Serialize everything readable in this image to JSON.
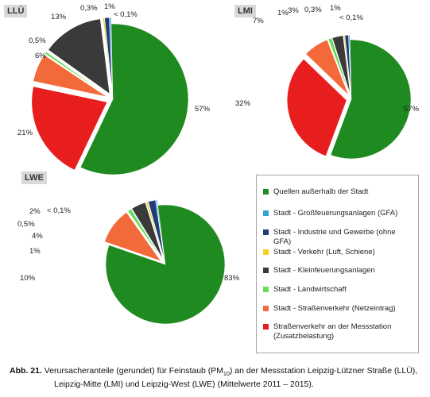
{
  "chart_data": [
    {
      "type": "pie",
      "title": "LLÜ",
      "slices": [
        {
          "label": "57%",
          "value": 57,
          "series": 0
        },
        {
          "label": "21%",
          "value": 21,
          "series": 7
        },
        {
          "label": "6%",
          "value": 6,
          "series": 6
        },
        {
          "label": "0,5%",
          "value": 0.5,
          "series": 5
        },
        {
          "label": "13%",
          "value": 13,
          "series": 4
        },
        {
          "label": "0,3%",
          "value": 0.3,
          "series": 3
        },
        {
          "label": "1%",
          "value": 1,
          "series": 2
        },
        {
          "label": "< 0,1%",
          "value": 0.1,
          "series": 1
        }
      ]
    },
    {
      "type": "pie",
      "title": "LMI",
      "slices": [
        {
          "label": "57%",
          "value": 57,
          "series": 0
        },
        {
          "label": "32%",
          "value": 32,
          "series": 7
        },
        {
          "label": "7%",
          "value": 7,
          "series": 6
        },
        {
          "label": "1%",
          "value": 1,
          "series": 5
        },
        {
          "label": "3%",
          "value": 3,
          "series": 4
        },
        {
          "label": "0,3%",
          "value": 0.3,
          "series": 3
        },
        {
          "label": "1%",
          "value": 1,
          "series": 2
        },
        {
          "label": "< 0,1%",
          "value": 0.1,
          "series": 1
        }
      ]
    },
    {
      "type": "pie",
      "title": "LWE",
      "slices": [
        {
          "label": "83%",
          "value": 83,
          "series": 0
        },
        {
          "label": "10%",
          "value": 10,
          "series": 6
        },
        {
          "label": "1%",
          "value": 1,
          "series": 5
        },
        {
          "label": "4%",
          "value": 4,
          "series": 4
        },
        {
          "label": "0,5%",
          "value": 0.5,
          "series": 3
        },
        {
          "label": "2%",
          "value": 2,
          "series": 2
        },
        {
          "label": "< 0,1%",
          "value": 0.1,
          "series": 1
        }
      ]
    }
  ],
  "legend": [
    {
      "label": "Quellen außerhalb der Stadt",
      "color": "#1f8a1f"
    },
    {
      "label": "Stadt - Großfeuerungsanlagen (GFA)",
      "color": "#3aa0d8"
    },
    {
      "label": "Stadt - Industrie und Gewerbe (ohne GFA)",
      "color": "#1f3f7a"
    },
    {
      "label": "Stadt - Verkehr (Luft, Schiene)",
      "color": "#f2d024"
    },
    {
      "label": "Stadt - Kleinfeuerungsanlagen",
      "color": "#3a3a3a"
    },
    {
      "label": "Stadt - Landwirtschaft",
      "color": "#66dd55"
    },
    {
      "label": "Stadt - Straßenverkehr (Netzeintrag)",
      "color": "#f26a3a"
    },
    {
      "label": "Straßenverkehr an der Messstation (Zusatzbelastung)",
      "color": "#e81e1e"
    }
  ],
  "caption": {
    "label": "Abb. 21.",
    "line1": "Verursacheranteile (gerundet) für Feinstaub (PM",
    "sub": "10",
    "line1_rest": ") an der Messstation Leipzig-Lützner Straße (LLÜ),",
    "line2": "Leipzig-Mitte (LMI) und Leipzig-West (LWE) (Mittelwerte 2011 – 2015)."
  }
}
